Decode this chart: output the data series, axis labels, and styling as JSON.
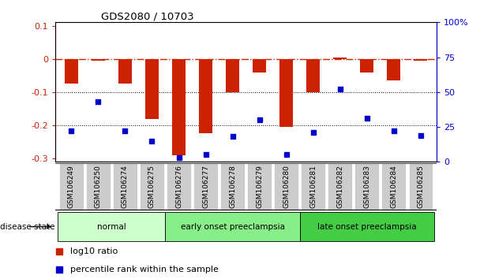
{
  "title": "GDS2080 / 10703",
  "samples": [
    "GSM106249",
    "GSM106250",
    "GSM106274",
    "GSM106275",
    "GSM106276",
    "GSM106277",
    "GSM106278",
    "GSM106279",
    "GSM106280",
    "GSM106281",
    "GSM106282",
    "GSM106283",
    "GSM106284",
    "GSM106285"
  ],
  "log10_ratio": [
    -0.075,
    -0.005,
    -0.075,
    -0.18,
    -0.29,
    -0.225,
    -0.1,
    -0.04,
    -0.205,
    -0.1,
    0.005,
    -0.04,
    -0.065,
    -0.005
  ],
  "percentile_rank": [
    22,
    43,
    22,
    15,
    3,
    5,
    18,
    30,
    5,
    21,
    52,
    31,
    22,
    19
  ],
  "disease_groups": [
    {
      "label": "normal",
      "start": 0,
      "end": 3,
      "color": "#ccffcc"
    },
    {
      "label": "early onset preeclampsia",
      "start": 4,
      "end": 8,
      "color": "#88ee88"
    },
    {
      "label": "late onset preeclampsia",
      "start": 9,
      "end": 13,
      "color": "#44cc44"
    }
  ],
  "ylim_left": [
    -0.31,
    0.11
  ],
  "ylim_right": [
    0,
    100
  ],
  "yticks_left": [
    0.1,
    0,
    -0.1,
    -0.2,
    -0.3
  ],
  "yticks_right": [
    100,
    75,
    50,
    25,
    0
  ],
  "bar_color": "#cc2200",
  "dot_color": "#0000cc",
  "hline_color": "#cc2200",
  "hline_style": "-.",
  "dotted_lines": [
    -0.1,
    -0.2
  ],
  "legend_items": [
    "log10 ratio",
    "percentile rank within the sample"
  ],
  "bar_width": 0.5,
  "background_color": "#ffffff",
  "group_label_text": "disease state",
  "tick_label_bg": "#cccccc",
  "spine_color": "#aaaaaa"
}
